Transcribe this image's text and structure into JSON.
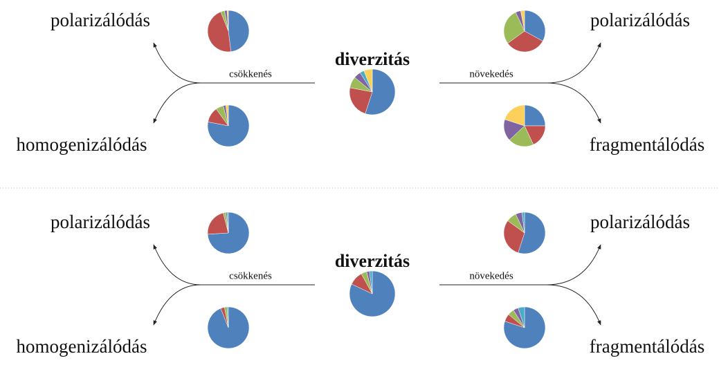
{
  "panels": [
    {
      "title": "diverzitás",
      "left_arrow": "csökkenés",
      "right_arrow": "növekedés",
      "top_left": "polarizálódás",
      "bottom_left": "homogenizálódás",
      "top_right": "polarizálódás",
      "bottom_right": "fragmentálódás",
      "pies": {
        "center": [
          {
            "value": 55,
            "color": "#4f81bd"
          },
          {
            "value": 23,
            "color": "#c0504d"
          },
          {
            "value": 8,
            "color": "#9bbb59"
          },
          {
            "value": 5,
            "color": "#8064a2"
          },
          {
            "value": 3,
            "color": "#4bacc6"
          },
          {
            "value": 6,
            "color": "#fcd05a"
          }
        ],
        "top_left": [
          {
            "value": 48,
            "color": "#4f81bd"
          },
          {
            "value": 46,
            "color": "#c0504d"
          },
          {
            "value": 3,
            "color": "#9bbb59"
          },
          {
            "value": 2,
            "color": "#8064a2"
          },
          {
            "value": 1,
            "color": "#fcd05a"
          }
        ],
        "bottom_left": [
          {
            "value": 78,
            "color": "#4f81bd"
          },
          {
            "value": 12,
            "color": "#c0504d"
          },
          {
            "value": 6,
            "color": "#9bbb59"
          },
          {
            "value": 2,
            "color": "#8064a2"
          },
          {
            "value": 2,
            "color": "#fcd05a"
          }
        ],
        "top_right": [
          {
            "value": 33,
            "color": "#4f81bd"
          },
          {
            "value": 32,
            "color": "#c0504d"
          },
          {
            "value": 28,
            "color": "#9bbb59"
          },
          {
            "value": 4,
            "color": "#8064a2"
          },
          {
            "value": 3,
            "color": "#fcd05a"
          }
        ],
        "bottom_right": [
          {
            "value": 25,
            "color": "#4f81bd"
          },
          {
            "value": 18,
            "color": "#c0504d"
          },
          {
            "value": 20,
            "color": "#9bbb59"
          },
          {
            "value": 17,
            "color": "#8064a2"
          },
          {
            "value": 20,
            "color": "#fcd05a"
          }
        ]
      }
    },
    {
      "title": "diverzitás",
      "left_arrow": "csökkenés",
      "right_arrow": "növekedés",
      "top_left": "polarizálódás",
      "bottom_left": "homogenizálódás",
      "top_right": "polarizálódás",
      "bottom_right": "fragmentálódás",
      "pies": {
        "center": [
          {
            "value": 82,
            "color": "#4f81bd"
          },
          {
            "value": 10,
            "color": "#c0504d"
          },
          {
            "value": 4,
            "color": "#9bbb59"
          },
          {
            "value": 2,
            "color": "#8064a2"
          },
          {
            "value": 2,
            "color": "#4bacc6"
          }
        ],
        "top_left": [
          {
            "value": 74,
            "color": "#4f81bd"
          },
          {
            "value": 22,
            "color": "#c0504d"
          },
          {
            "value": 2,
            "color": "#9bbb59"
          },
          {
            "value": 1,
            "color": "#8064a2"
          },
          {
            "value": 1,
            "color": "#4bacc6"
          }
        ],
        "bottom_left": [
          {
            "value": 94,
            "color": "#4f81bd"
          },
          {
            "value": 3,
            "color": "#c0504d"
          },
          {
            "value": 2,
            "color": "#9bbb59"
          },
          {
            "value": 1,
            "color": "#4bacc6"
          }
        ],
        "top_right": [
          {
            "value": 55,
            "color": "#4f81bd"
          },
          {
            "value": 30,
            "color": "#c0504d"
          },
          {
            "value": 8,
            "color": "#9bbb59"
          },
          {
            "value": 5,
            "color": "#8064a2"
          },
          {
            "value": 2,
            "color": "#4bacc6"
          }
        ],
        "bottom_right": [
          {
            "value": 80,
            "color": "#4f81bd"
          },
          {
            "value": 6,
            "color": "#c0504d"
          },
          {
            "value": 5,
            "color": "#9bbb59"
          },
          {
            "value": 4,
            "color": "#8064a2"
          },
          {
            "value": 5,
            "color": "#4bacc6"
          }
        ]
      }
    }
  ]
}
